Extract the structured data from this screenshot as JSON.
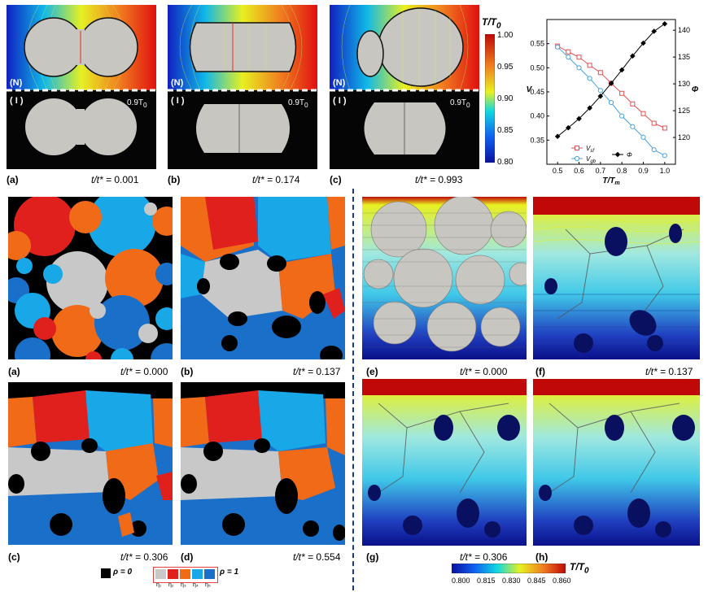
{
  "top_row": {
    "panels": [
      {
        "label": "(a)",
        "time_prefix": "t/t* = ",
        "time": "0.001",
        "n_tag": "(N)",
        "i_tag": "( I )",
        "temp_tag": "0.9T",
        "temp_sub": "0"
      },
      {
        "label": "(b)",
        "time_prefix": "t/t* = ",
        "time": "0.174",
        "n_tag": "(N)",
        "i_tag": "( I )",
        "temp_tag": "0.9T",
        "temp_sub": "0"
      },
      {
        "label": "(c)",
        "time_prefix": "t/t* = ",
        "time": "0.993",
        "n_tag": "(N)",
        "i_tag": "( I )",
        "temp_tag": "0.9T",
        "temp_sub": "0"
      }
    ],
    "colorbar": {
      "title": "T/T",
      "title_sub": "0",
      "ticks": [
        "1.00",
        "0.95",
        "0.90",
        "0.85",
        "0.80"
      ]
    }
  },
  "chart_data": {
    "type": "line",
    "x": [
      0.5,
      0.55,
      0.6,
      0.65,
      0.7,
      0.75,
      0.8,
      0.85,
      0.9,
      0.95,
      1.0
    ],
    "xlabel": "T/T",
    "xlabel_sub": "m",
    "ylabel_left": "V",
    "ylabel_right": "Φ",
    "xlim": [
      0.45,
      1.05
    ],
    "ylim_left": [
      0.3,
      0.6
    ],
    "ylim_right": [
      115,
      142
    ],
    "x_ticks": [
      "0.5",
      "0.6",
      "0.7",
      "0.8",
      "0.9",
      "1.0"
    ],
    "y_ticks_left": [
      "0.35",
      "0.40",
      "0.45",
      "0.50",
      "0.55"
    ],
    "y_ticks_right": [
      "120",
      "125",
      "130",
      "135",
      "140"
    ],
    "series": [
      {
        "name": "V",
        "name_sub": "sf",
        "axis": "left",
        "color": "#e05050",
        "marker": "square-open",
        "values": [
          0.545,
          0.533,
          0.522,
          0.505,
          0.49,
          0.468,
          0.447,
          0.425,
          0.405,
          0.385,
          0.375
        ]
      },
      {
        "name": "V",
        "name_sub": "gb",
        "axis": "left",
        "color": "#4aa3df",
        "marker": "circle-open",
        "values": [
          0.543,
          0.522,
          0.5,
          0.478,
          0.453,
          0.428,
          0.4,
          0.378,
          0.356,
          0.33,
          0.318
        ]
      },
      {
        "name": "Φ",
        "name_sub": "",
        "axis": "right",
        "color": "#000000",
        "marker": "diamond-filled",
        "values": [
          120.2,
          121.8,
          123.5,
          125.5,
          127.7,
          130.1,
          132.6,
          135.2,
          137.6,
          139.8,
          141.2
        ]
      }
    ]
  },
  "middle": {
    "panels_left": [
      {
        "label": "(a)",
        "time_prefix": "t/t* = ",
        "time": "0.000"
      },
      {
        "label": "(b)",
        "time_prefix": "t/t* = ",
        "time": "0.137"
      },
      {
        "label": "(c)",
        "time_prefix": "t/t* = ",
        "time": "0.306"
      },
      {
        "label": "(d)",
        "time_prefix": "t/t* = ",
        "time": "0.554"
      }
    ],
    "panels_right": [
      {
        "label": "(e)",
        "time_prefix": "t/t* = ",
        "time": "0.000"
      },
      {
        "label": "(f)",
        "time_prefix": "t/t* = ",
        "time": "0.137"
      },
      {
        "label": "(g)",
        "time_prefix": "t/t* = ",
        "time": "0.306"
      },
      {
        "label": "(h)",
        "time_prefix": "",
        "time": ""
      }
    ]
  },
  "legend": {
    "rho0": "ρ = 0",
    "rho1": "ρ = 1",
    "eta_labels": [
      "η₁",
      "η₂",
      "η₃",
      "η₄",
      "η₅"
    ],
    "colors": {
      "rho0": "#000000",
      "eta1": "#c8c8c8",
      "eta2": "#e0201c",
      "eta3": "#f06a18",
      "eta4": "#18a8e8",
      "eta5": "#1a70c8"
    }
  },
  "bottom_colorbar": {
    "title": "T/T",
    "title_sub": "0",
    "ticks": [
      "0.800",
      "0.815",
      "0.830",
      "0.845",
      "0.860"
    ]
  }
}
